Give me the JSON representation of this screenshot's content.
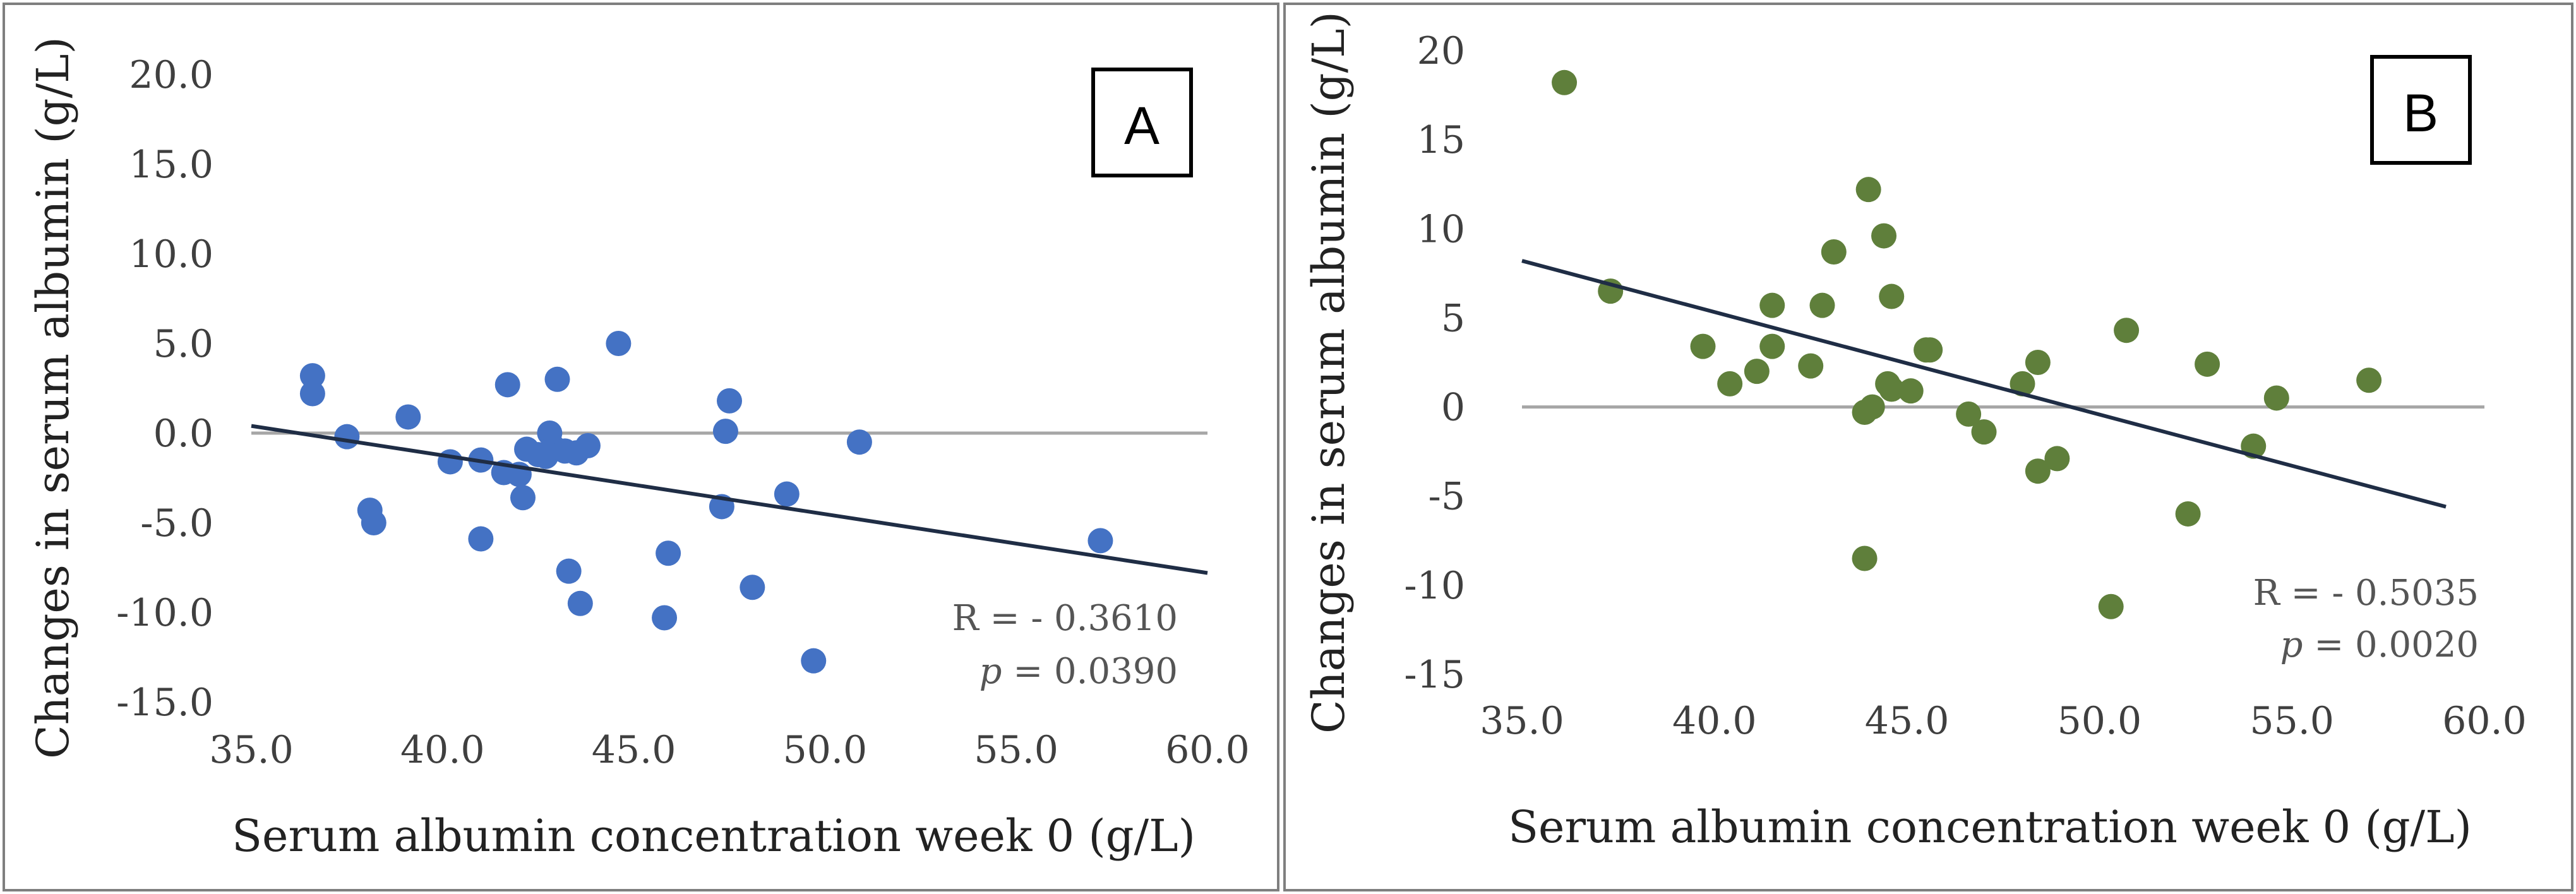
{
  "colors": {
    "background": "#ffffff",
    "panel_border": "#7f7f7f",
    "zero_line": "#a6a6a6",
    "trend_line": "#1f2d45"
  },
  "chart_data": [
    {
      "panel": "A",
      "type": "scatter",
      "xlabel": "Serum albumin concentration week 0 (g/L)",
      "ylabel": "Changes in serum albumin (g/L)",
      "xlim": [
        35,
        60
      ],
      "ylim": [
        -15,
        20
      ],
      "x_ticks": [
        "35.0",
        "40.0",
        "45.0",
        "50.0",
        "55.0",
        "60.0"
      ],
      "y_ticks": [
        "20.0",
        "15.0",
        "10.0",
        "5.0",
        "0.0",
        "-5.0",
        "-10.0",
        "-15.0"
      ],
      "marker_color": "#4472c4",
      "trendline": {
        "x": [
          35,
          60
        ],
        "y": [
          0.4,
          -7.8
        ]
      },
      "stats": {
        "r_text": "R = - 0.3610",
        "p_label": "p",
        "p_value": " = 0.0390"
      },
      "points": [
        {
          "x": 36.6,
          "y": 3.2
        },
        {
          "x": 36.6,
          "y": 2.2
        },
        {
          "x": 37.5,
          "y": -0.2
        },
        {
          "x": 38.1,
          "y": -4.3
        },
        {
          "x": 38.2,
          "y": -5.0
        },
        {
          "x": 39.1,
          "y": 0.9
        },
        {
          "x": 40.2,
          "y": -1.6
        },
        {
          "x": 41.0,
          "y": -5.9
        },
        {
          "x": 41.0,
          "y": -1.5
        },
        {
          "x": 41.6,
          "y": -2.2
        },
        {
          "x": 41.7,
          "y": 2.7
        },
        {
          "x": 42.0,
          "y": -2.3
        },
        {
          "x": 42.1,
          "y": -3.6
        },
        {
          "x": 42.2,
          "y": -0.9
        },
        {
          "x": 42.5,
          "y": -1.2
        },
        {
          "x": 42.7,
          "y": -1.3
        },
        {
          "x": 42.8,
          "y": 0.0
        },
        {
          "x": 42.9,
          "y": -0.8
        },
        {
          "x": 43.0,
          "y": 3.0
        },
        {
          "x": 43.2,
          "y": -1.0
        },
        {
          "x": 43.3,
          "y": -7.7
        },
        {
          "x": 43.5,
          "y": -1.1
        },
        {
          "x": 43.6,
          "y": -9.5
        },
        {
          "x": 43.8,
          "y": -0.7
        },
        {
          "x": 44.6,
          "y": 5.0
        },
        {
          "x": 45.8,
          "y": -10.3
        },
        {
          "x": 45.9,
          "y": -6.7
        },
        {
          "x": 47.3,
          "y": -4.1
        },
        {
          "x": 47.4,
          "y": 0.1
        },
        {
          "x": 47.5,
          "y": 1.8
        },
        {
          "x": 48.1,
          "y": -8.6
        },
        {
          "x": 49.0,
          "y": -3.4
        },
        {
          "x": 49.7,
          "y": -12.7
        },
        {
          "x": 50.9,
          "y": -0.5
        },
        {
          "x": 57.2,
          "y": -6.0
        }
      ]
    },
    {
      "panel": "B",
      "type": "scatter",
      "xlabel": "Serum albumin concentration week 0 (g/L)",
      "ylabel": "Changes in serum albumin (g/L)",
      "xlim": [
        35,
        60
      ],
      "ylim": [
        -15,
        20
      ],
      "x_ticks": [
        "35.0",
        "40.0",
        "45.0",
        "50.0",
        "55.0",
        "60.0"
      ],
      "y_ticks": [
        "20",
        "15",
        "10",
        "5",
        "0",
        "-5",
        "-10",
        "-15"
      ],
      "marker_color": "#5f7f3b",
      "trendline": {
        "x": [
          35,
          59
        ],
        "y": [
          8.2,
          -5.6
        ]
      },
      "stats": {
        "r_text": "R = - 0.5035",
        "p_label": "p",
        "p_value": " = 0.0020"
      },
      "points": [
        {
          "x": 36.1,
          "y": 18.2
        },
        {
          "x": 37.3,
          "y": 6.5
        },
        {
          "x": 39.7,
          "y": 3.4
        },
        {
          "x": 40.4,
          "y": 1.3
        },
        {
          "x": 41.1,
          "y": 2.0
        },
        {
          "x": 41.5,
          "y": 5.7
        },
        {
          "x": 41.5,
          "y": 3.4
        },
        {
          "x": 42.5,
          "y": 2.3
        },
        {
          "x": 42.8,
          "y": 5.7
        },
        {
          "x": 43.1,
          "y": 8.7
        },
        {
          "x": 43.9,
          "y": -0.3
        },
        {
          "x": 43.9,
          "y": -8.5
        },
        {
          "x": 44.0,
          "y": 12.2
        },
        {
          "x": 44.1,
          "y": 0.0
        },
        {
          "x": 44.4,
          "y": 9.6
        },
        {
          "x": 44.5,
          "y": 1.3
        },
        {
          "x": 44.6,
          "y": 1.0
        },
        {
          "x": 44.6,
          "y": 6.2
        },
        {
          "x": 45.1,
          "y": 0.9
        },
        {
          "x": 45.5,
          "y": 3.2
        },
        {
          "x": 45.6,
          "y": 3.2
        },
        {
          "x": 46.6,
          "y": -0.4
        },
        {
          "x": 47.0,
          "y": -1.4
        },
        {
          "x": 48.0,
          "y": 1.3
        },
        {
          "x": 48.4,
          "y": 2.5
        },
        {
          "x": 48.4,
          "y": -3.6
        },
        {
          "x": 48.9,
          "y": -2.9
        },
        {
          "x": 50.3,
          "y": -11.2
        },
        {
          "x": 50.7,
          "y": 4.3
        },
        {
          "x": 52.3,
          "y": -6.0
        },
        {
          "x": 52.8,
          "y": 2.4
        },
        {
          "x": 54.0,
          "y": -2.2
        },
        {
          "x": 54.6,
          "y": 0.5
        },
        {
          "x": 57.0,
          "y": 1.5
        }
      ]
    }
  ]
}
